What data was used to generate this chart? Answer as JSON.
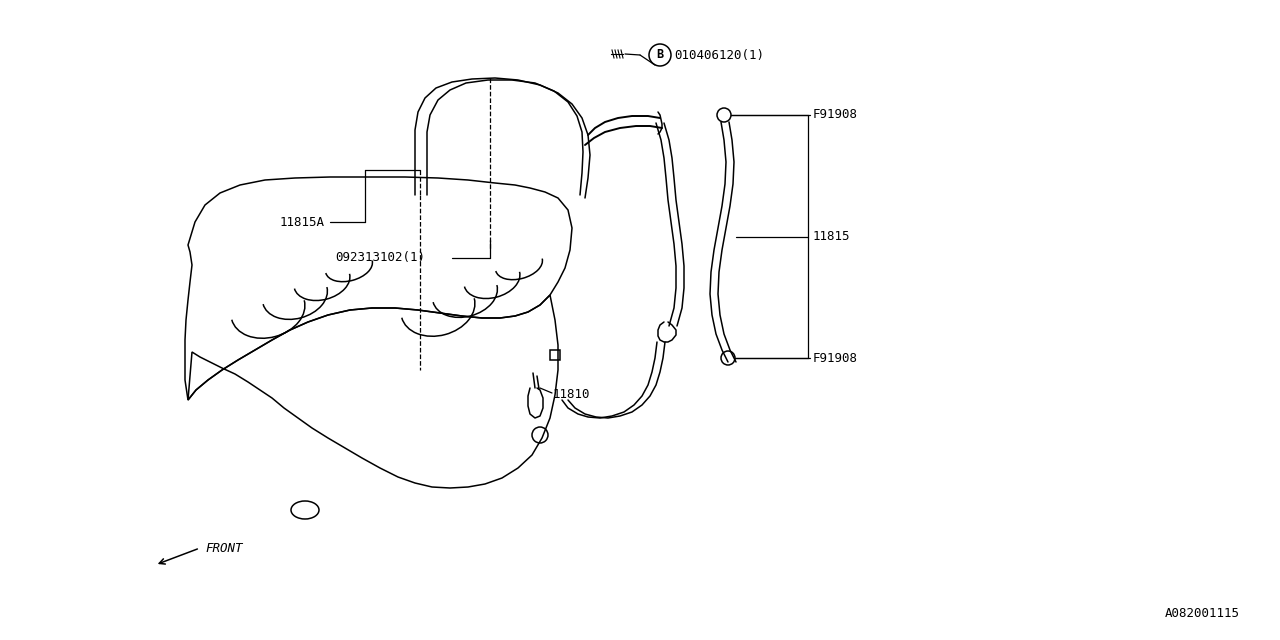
{
  "bg_color": "#ffffff",
  "lc": "#000000",
  "lw": 1.1,
  "fig_w": 12.8,
  "fig_h": 6.4,
  "dpi": 100,
  "labels": {
    "B_part": "010406120(1)",
    "part_11815A": "11815A",
    "part_0923": "092313102(1)",
    "part_F91908_1": "F91908",
    "part_F91908_2": "F91908",
    "part_11815": "11815",
    "part_11810": "11810",
    "front_label": "FRONT",
    "diagram_id": "A082001115"
  },
  "font_size": 9.5,
  "font_family": "monospace"
}
